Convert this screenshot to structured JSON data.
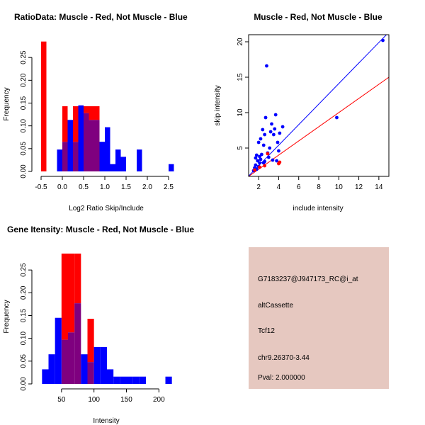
{
  "colors": {
    "red": "#ff0000",
    "blue": "#0000ff",
    "overlap": "#7f007f",
    "panel_bg": "#e6c8c0",
    "pval": "#b00000"
  },
  "chart_data": [
    {
      "id": "ratio",
      "type": "bar",
      "title": "RatioData: Muscle - Red, Not Muscle - Blue",
      "xlabel": "Log2 Ratio Skip/Include",
      "ylabel": "Frequency",
      "xlim": [
        -0.6,
        2.7
      ],
      "ylim": [
        0,
        0.3
      ],
      "xticks": [
        -0.5,
        0.0,
        0.5,
        1.0,
        1.5,
        2.0,
        2.5
      ],
      "xtick_labels": [
        "-0.5",
        "0.0",
        "0.5",
        "1.0",
        "1.5",
        "2.0",
        "2.5"
      ],
      "yticks": [
        0.0,
        0.05,
        0.1,
        0.15,
        0.2,
        0.25
      ],
      "ytick_labels": [
        "0.00",
        "0.05",
        "0.10",
        "0.15",
        "0.20",
        "0.25"
      ],
      "series": [
        {
          "name": "Muscle",
          "color": "red",
          "bins": [
            [
              -0.5,
              -0.375,
              0.285
            ],
            [
              0.0,
              0.125,
              0.143
            ],
            [
              0.25,
              0.375,
              0.143
            ],
            [
              0.5,
              0.625,
              0.143
            ],
            [
              0.625,
              0.75,
              0.143
            ],
            [
              0.75,
              0.875,
              0.143
            ]
          ]
        },
        {
          "name": "Not Muscle",
          "color": "blue",
          "bins": [
            [
              -0.125,
              0.0,
              0.048
            ],
            [
              0.0,
              0.125,
              0.065
            ],
            [
              0.125,
              0.25,
              0.113
            ],
            [
              0.25,
              0.375,
              0.065
            ],
            [
              0.375,
              0.5,
              0.145
            ],
            [
              0.5,
              0.625,
              0.128
            ],
            [
              0.625,
              0.75,
              0.113
            ],
            [
              0.75,
              0.875,
              0.113
            ],
            [
              0.875,
              1.0,
              0.065
            ],
            [
              1.0,
              1.125,
              0.097
            ],
            [
              1.125,
              1.25,
              0.016
            ],
            [
              1.25,
              1.375,
              0.048
            ],
            [
              1.375,
              1.5,
              0.032
            ],
            [
              1.75,
              1.875,
              0.048
            ],
            [
              2.5,
              2.625,
              0.016
            ]
          ]
        }
      ]
    },
    {
      "id": "scatter",
      "type": "scatter",
      "title": "Muscle - Red, Not Muscle - Blue",
      "xlabel": "include intensity",
      "ylabel": "skip intensity",
      "xlim": [
        1,
        15
      ],
      "ylim": [
        1,
        21
      ],
      "xticks": [
        2,
        4,
        6,
        8,
        10,
        12,
        14
      ],
      "xtick_labels": [
        "2",
        "4",
        "6",
        "8",
        "10",
        "12",
        "14"
      ],
      "yticks": [
        5,
        10,
        15,
        20
      ],
      "ytick_labels": [
        "5",
        "10",
        "15",
        "20"
      ],
      "lines": [
        {
          "name": "muscle-fit",
          "color": "red",
          "slope": 1.0,
          "intercept": 0.0
        },
        {
          "name": "not-muscle-fit",
          "color": "blue",
          "slope": 1.45,
          "intercept": -0.4
        }
      ],
      "series": [
        {
          "name": "Not Muscle",
          "color": "blue",
          "points": [
            [
              1.5,
              1.8
            ],
            [
              1.6,
              2.2
            ],
            [
              1.7,
              2.6
            ],
            [
              1.8,
              2.0
            ],
            [
              1.9,
              3.2
            ],
            [
              1.7,
              3.6
            ],
            [
              2.0,
              2.4
            ],
            [
              2.1,
              2.9
            ],
            [
              2.2,
              3.4
            ],
            [
              2.3,
              4.1
            ],
            [
              2.0,
              5.8
            ],
            [
              2.2,
              6.3
            ],
            [
              2.5,
              5.4
            ],
            [
              2.6,
              6.9
            ],
            [
              2.4,
              7.6
            ],
            [
              2.7,
              9.3
            ],
            [
              2.8,
              16.6
            ],
            [
              2.9,
              4.3
            ],
            [
              3.0,
              3.7
            ],
            [
              3.1,
              5.0
            ],
            [
              3.2,
              7.3
            ],
            [
              3.3,
              8.4
            ],
            [
              3.5,
              6.9
            ],
            [
              3.6,
              7.7
            ],
            [
              3.7,
              9.7
            ],
            [
              3.8,
              3.2
            ],
            [
              3.9,
              5.8
            ],
            [
              4.1,
              7.1
            ],
            [
              4.4,
              8.0
            ],
            [
              4.0,
              4.6
            ],
            [
              2.5,
              2.9
            ],
            [
              3.4,
              3.3
            ],
            [
              1.8,
              4.0
            ],
            [
              2.1,
              3.8
            ],
            [
              2.6,
              3.1
            ],
            [
              9.8,
              9.3
            ],
            [
              14.4,
              20.2
            ]
          ]
        },
        {
          "name": "Muscle",
          "color": "red",
          "points": [
            [
              1.6,
              1.9
            ],
            [
              2.1,
              2.3
            ],
            [
              2.6,
              2.5
            ],
            [
              2.9,
              4.2
            ],
            [
              4.0,
              2.8
            ],
            [
              4.1,
              3.0
            ]
          ]
        }
      ]
    },
    {
      "id": "intensity",
      "type": "bar",
      "title": "Gene Itensity: Muscle - Red, Not Muscle - Blue",
      "xlabel": "Intensity",
      "ylabel": "Frequency",
      "xlim": [
        12,
        228
      ],
      "ylim": [
        0,
        0.3
      ],
      "xticks": [
        50,
        100,
        150,
        200
      ],
      "xtick_labels": [
        "50",
        "100",
        "150",
        "200"
      ],
      "yticks": [
        0.0,
        0.05,
        0.1,
        0.15,
        0.2,
        0.25
      ],
      "ytick_labels": [
        "0.00",
        "0.05",
        "0.10",
        "0.15",
        "0.20",
        "0.25"
      ],
      "series": [
        {
          "name": "Muscle",
          "color": "red",
          "bins": [
            [
              50,
              60,
              0.286
            ],
            [
              60,
              70,
              0.286
            ],
            [
              70,
              80,
              0.286
            ],
            [
              90,
              100,
              0.143
            ]
          ]
        },
        {
          "name": "Not Muscle",
          "color": "blue",
          "bins": [
            [
              20,
              30,
              0.032
            ],
            [
              30,
              40,
              0.065
            ],
            [
              40,
              50,
              0.145
            ],
            [
              50,
              60,
              0.097
            ],
            [
              60,
              70,
              0.113
            ],
            [
              70,
              80,
              0.177
            ],
            [
              80,
              90,
              0.065
            ],
            [
              90,
              100,
              0.048
            ],
            [
              100,
              110,
              0.081
            ],
            [
              110,
              120,
              0.081
            ],
            [
              120,
              130,
              0.032
            ],
            [
              130,
              140,
              0.016
            ],
            [
              140,
              150,
              0.016
            ],
            [
              150,
              160,
              0.016
            ],
            [
              160,
              170,
              0.016
            ],
            [
              170,
              180,
              0.016
            ],
            [
              210,
              220,
              0.016
            ]
          ]
        }
      ]
    }
  ],
  "info": {
    "probe": "G7183237@J947173_RC@i_at",
    "event": "altCassette",
    "gene": "Tcf12",
    "location": "chr9.26370-3.44",
    "pval": "Pval: 2.000000"
  }
}
